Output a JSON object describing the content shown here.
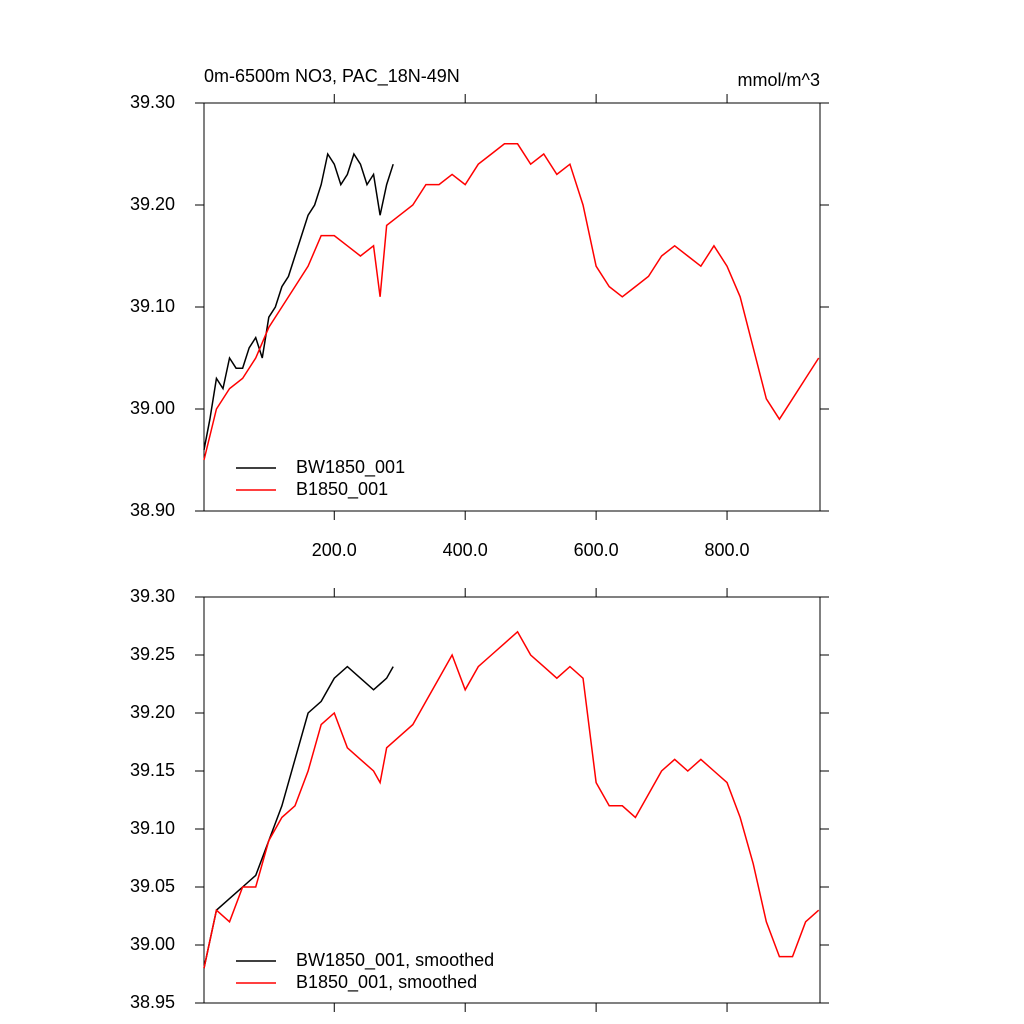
{
  "chart_data": [
    {
      "type": "line",
      "title": "0m-6500m NO3, PAC_18N-49N",
      "units": "mmol/m^3",
      "xlim": [
        1,
        942
      ],
      "ylim": [
        38.9,
        39.3
      ],
      "xticks": [
        {
          "value": 200,
          "label": "200.0"
        },
        {
          "value": 400,
          "label": "400.0"
        },
        {
          "value": 600,
          "label": "600.0"
        },
        {
          "value": 800,
          "label": "800.0"
        }
      ],
      "yticks": [
        {
          "value": 38.9,
          "label": "38.90"
        },
        {
          "value": 39.0,
          "label": "39.00"
        },
        {
          "value": 39.1,
          "label": "39.10"
        },
        {
          "value": 39.2,
          "label": "39.20"
        },
        {
          "value": 39.3,
          "label": "39.30"
        }
      ],
      "x_tick_labels": true,
      "series": [
        {
          "name": "BW1850_001",
          "color": "#000000",
          "x": [
            1,
            10,
            20,
            30,
            40,
            50,
            60,
            70,
            80,
            90,
            100,
            110,
            120,
            130,
            140,
            150,
            160,
            170,
            180,
            190,
            200,
            210,
            220,
            230,
            240,
            250,
            260,
            270,
            280,
            290
          ],
          "values": [
            38.96,
            38.99,
            39.03,
            39.02,
            39.05,
            39.04,
            39.04,
            39.06,
            39.07,
            39.05,
            39.09,
            39.1,
            39.12,
            39.13,
            39.15,
            39.17,
            39.19,
            39.2,
            39.22,
            39.25,
            39.24,
            39.22,
            39.23,
            39.25,
            39.24,
            39.22,
            39.23,
            39.19,
            39.22,
            39.24
          ]
        },
        {
          "name": "B1850_001",
          "color": "#ff0000",
          "x": [
            1,
            20,
            40,
            60,
            80,
            100,
            120,
            140,
            160,
            180,
            200,
            220,
            240,
            260,
            270,
            280,
            300,
            320,
            340,
            360,
            380,
            400,
            420,
            440,
            460,
            480,
            500,
            520,
            540,
            560,
            580,
            600,
            620,
            640,
            660,
            680,
            700,
            720,
            740,
            760,
            780,
            800,
            820,
            840,
            860,
            880,
            900,
            920,
            940
          ],
          "values": [
            38.95,
            39.0,
            39.02,
            39.03,
            39.05,
            39.08,
            39.1,
            39.12,
            39.14,
            39.17,
            39.17,
            39.16,
            39.15,
            39.16,
            39.11,
            39.18,
            39.19,
            39.2,
            39.22,
            39.22,
            39.23,
            39.22,
            39.24,
            39.25,
            39.26,
            39.26,
            39.24,
            39.25,
            39.23,
            39.24,
            39.2,
            39.14,
            39.12,
            39.11,
            39.12,
            39.13,
            39.15,
            39.16,
            39.15,
            39.14,
            39.16,
            39.14,
            39.11,
            39.06,
            39.01,
            38.99,
            39.01,
            39.03,
            39.05
          ]
        }
      ]
    },
    {
      "type": "line",
      "xlim": [
        1,
        942
      ],
      "ylim": [
        38.95,
        39.3
      ],
      "xticks": [
        200,
        400,
        600,
        800
      ],
      "yticks": [
        {
          "value": 38.95,
          "label": "38.95"
        },
        {
          "value": 39.0,
          "label": "39.00"
        },
        {
          "value": 39.05,
          "label": "39.05"
        },
        {
          "value": 39.1,
          "label": "39.10"
        },
        {
          "value": 39.15,
          "label": "39.15"
        },
        {
          "value": 39.2,
          "label": "39.20"
        },
        {
          "value": 39.25,
          "label": "39.25"
        },
        {
          "value": 39.3,
          "label": "39.30"
        }
      ],
      "x_tick_labels": false,
      "series": [
        {
          "name": "BW1850_001, smoothed",
          "color": "#000000",
          "x": [
            1,
            20,
            40,
            60,
            80,
            100,
            120,
            140,
            160,
            180,
            200,
            220,
            240,
            260,
            280,
            290
          ],
          "values": [
            38.98,
            39.03,
            39.04,
            39.05,
            39.06,
            39.09,
            39.12,
            39.16,
            39.2,
            39.21,
            39.23,
            39.24,
            39.23,
            39.22,
            39.23,
            39.24
          ]
        },
        {
          "name": "B1850_001, smoothed",
          "color": "#ff0000",
          "x": [
            1,
            20,
            40,
            60,
            80,
            100,
            120,
            140,
            160,
            180,
            200,
            220,
            240,
            260,
            270,
            280,
            300,
            320,
            340,
            360,
            380,
            400,
            420,
            440,
            460,
            480,
            500,
            520,
            540,
            560,
            580,
            600,
            620,
            640,
            660,
            680,
            700,
            720,
            740,
            760,
            780,
            800,
            820,
            840,
            860,
            880,
            900,
            920,
            940
          ],
          "values": [
            38.98,
            39.03,
            39.02,
            39.05,
            39.05,
            39.09,
            39.11,
            39.12,
            39.15,
            39.19,
            39.2,
            39.17,
            39.16,
            39.15,
            39.14,
            39.17,
            39.18,
            39.19,
            39.21,
            39.23,
            39.25,
            39.22,
            39.24,
            39.25,
            39.26,
            39.27,
            39.25,
            39.24,
            39.23,
            39.24,
            39.23,
            39.14,
            39.12,
            39.12,
            39.11,
            39.13,
            39.15,
            39.16,
            39.15,
            39.16,
            39.15,
            39.14,
            39.11,
            39.07,
            39.02,
            38.99,
            38.99,
            39.02,
            39.03
          ]
        }
      ]
    }
  ]
}
